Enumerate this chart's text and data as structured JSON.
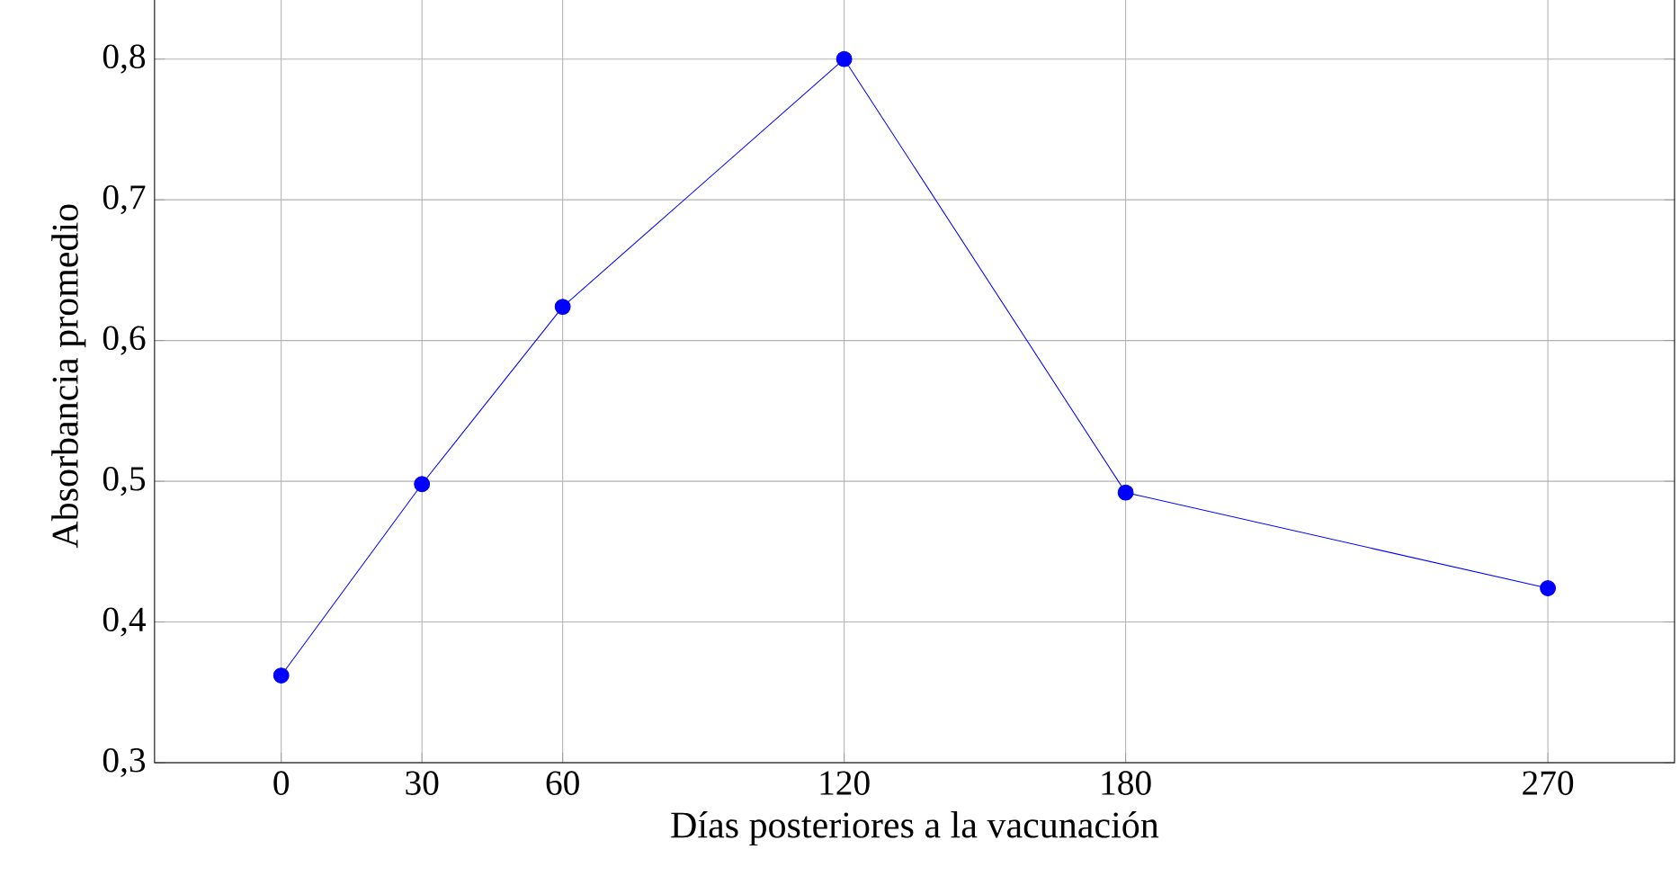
{
  "chart_data": {
    "type": "line",
    "xlabel": "Días posteriores a la vacunación",
    "ylabel": "Absorbancia promedio",
    "x": [
      0,
      30,
      60,
      120,
      180,
      270
    ],
    "series": [
      {
        "color": "#0000ff",
        "values": [
          0.362,
          0.498,
          0.624,
          0.8,
          0.492,
          0.424
        ]
      }
    ],
    "xlim": [
      -27,
      297
    ],
    "ylim": [
      0.3,
      0.85
    ],
    "xticks": [
      0,
      30,
      60,
      120,
      180,
      270
    ],
    "yticks": [
      {
        "value": 0.3,
        "label": "0,3"
      },
      {
        "value": 0.4,
        "label": "0,4"
      },
      {
        "value": 0.5,
        "label": "0,5"
      },
      {
        "value": 0.6,
        "label": "0,6"
      },
      {
        "value": 0.7,
        "label": "0,7"
      },
      {
        "value": 0.8,
        "label": "0,8"
      }
    ],
    "grid": true,
    "marker": "circle",
    "line_style": "solid"
  }
}
